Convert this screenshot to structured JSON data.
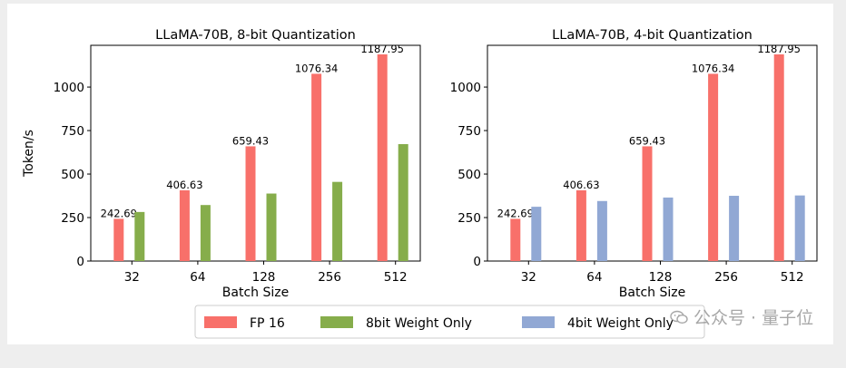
{
  "chart_data": [
    {
      "type": "bar",
      "title": "LLaMA-70B, 8-bit Quantization",
      "xlabel": "Batch Size",
      "ylabel": "Token/s",
      "categories": [
        "32",
        "64",
        "128",
        "256",
        "512"
      ],
      "ylim": [
        0,
        1240
      ],
      "yticks": [
        0,
        250,
        500,
        750,
        1000
      ],
      "series": [
        {
          "name": "FP 16",
          "color": "#f8706a",
          "values": [
            242.69,
            406.63,
            659.43,
            1076.34,
            1187.95
          ],
          "labels": [
            "242.69",
            "406.63",
            "659.43",
            "1076.34",
            "1187.95"
          ]
        },
        {
          "name": "8bit Weight Only",
          "color": "#86ad4b",
          "values": [
            282,
            322,
            388,
            455,
            672
          ]
        }
      ]
    },
    {
      "type": "bar",
      "title": "LLaMA-70B, 4-bit Quantization",
      "xlabel": "Batch Size",
      "ylabel": "",
      "categories": [
        "32",
        "64",
        "128",
        "256",
        "512"
      ],
      "ylim": [
        0,
        1240
      ],
      "yticks": [
        0,
        250,
        500,
        750,
        1000
      ],
      "series": [
        {
          "name": "FP 16",
          "color": "#f8706a",
          "values": [
            242.69,
            406.63,
            659.43,
            1076.34,
            1187.95
          ],
          "labels": [
            "242.69",
            "406.63",
            "659.43",
            "1076.34",
            "1187.95"
          ]
        },
        {
          "name": "4bit Weight Only",
          "color": "#91a8d4",
          "values": [
            312,
            345,
            365,
            375,
            377
          ]
        }
      ]
    }
  ],
  "legend": [
    {
      "label": "FP 16",
      "color": "#f8706a"
    },
    {
      "label": "8bit Weight Only",
      "color": "#86ad4b"
    },
    {
      "label": "4bit Weight Only",
      "color": "#91a8d4"
    }
  ],
  "watermark": "公众号 · 量子位"
}
